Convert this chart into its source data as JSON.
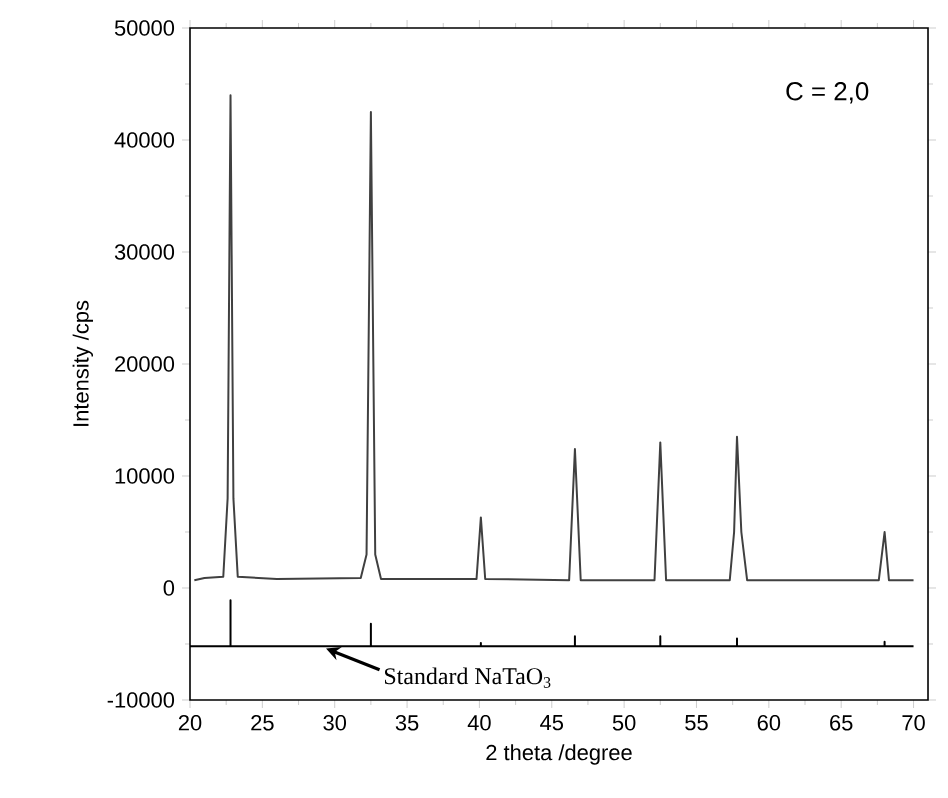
{
  "chart_data": {
    "type": "line",
    "xlabel": "2 theta /degree",
    "ylabel": "Intensity /cps",
    "xlim": [
      20,
      71
    ],
    "ylim": [
      -10000,
      50000
    ],
    "xticks": [
      20,
      25,
      30,
      35,
      40,
      45,
      50,
      55,
      60,
      65,
      70
    ],
    "yticks": [
      -10000,
      0,
      10000,
      20000,
      30000,
      40000,
      50000
    ],
    "series": [
      {
        "color": "#404040",
        "x": [
          20.3,
          21,
          22.3,
          22.6,
          22.8,
          23.0,
          23.3,
          26,
          31.8,
          32.2,
          32.5,
          32.8,
          33.2,
          38.2,
          39.8,
          40.1,
          40.4,
          46.2,
          46.6,
          47.0,
          52.1,
          52.5,
          52.9,
          57.3,
          57.6,
          57.8,
          58.1,
          58.5,
          67.6,
          68.0,
          68.3,
          70
        ],
        "values": [
          700,
          900,
          1000,
          8000,
          44000,
          8000,
          1000,
          800,
          900,
          3000,
          42500,
          3000,
          800,
          800,
          800,
          6300,
          800,
          700,
          12400,
          700,
          700,
          13000,
          700,
          700,
          5000,
          13500,
          5000,
          700,
          700,
          5000,
          700,
          700
        ]
      },
      {
        "color": "#000000",
        "x": [
          20,
          22.8,
          22.8,
          22.8,
          32.5,
          32.5,
          32.5,
          40.1,
          40.1,
          40.1,
          46.6,
          46.6,
          46.6,
          52.5,
          52.5,
          52.5,
          57.8,
          57.8,
          57.8,
          68.0,
          68.0,
          68.0,
          70
        ],
        "values": [
          -5200,
          -5200,
          -1100,
          -5200,
          -5200,
          -3200,
          -5200,
          -5200,
          -4900,
          -5200,
          -5200,
          -4300,
          -5200,
          -5200,
          -4300,
          -5200,
          -5200,
          -4500,
          -5200,
          -5200,
          -4800,
          -5200,
          -5200
        ]
      }
    ],
    "annotations": [
      "C = 2,0",
      {
        "text": "Standard NaTaO$_{3}$",
        "x": 29.4,
        "y": -5400
      }
    ]
  }
}
